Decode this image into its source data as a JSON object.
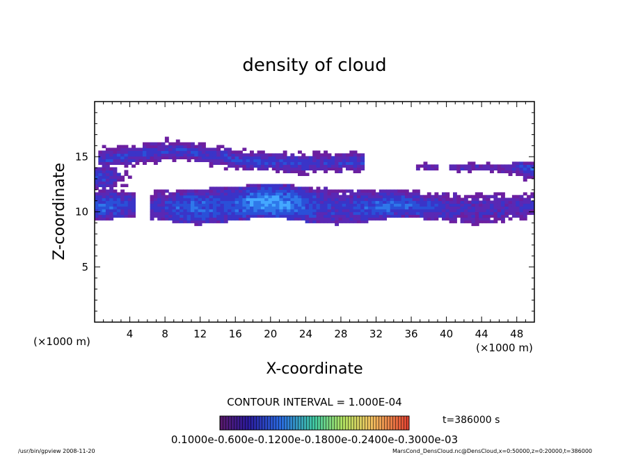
{
  "chart_data": {
    "type": "heatmap",
    "title": "density of cloud",
    "xlabel": "X-coordinate",
    "ylabel": "Z-coordinate",
    "x_units_label": "(×1000 m)",
    "y_units_label": "(×1000 m)",
    "xlim": [
      0,
      50
    ],
    "ylim": [
      0,
      20
    ],
    "x_ticks": [
      4,
      8,
      12,
      16,
      20,
      24,
      28,
      32,
      36,
      40,
      44,
      48
    ],
    "x_tick_labels": [
      "4",
      "8",
      "12",
      "16",
      "20",
      "24",
      "28",
      "32",
      "36",
      "40",
      "44",
      "48"
    ],
    "y_ticks": [
      5,
      10,
      15
    ],
    "y_tick_labels": [
      "5",
      "10",
      "15"
    ],
    "contour_interval": "CONTOUR INTERVAL = 1.000E-04",
    "time_label": "t=386000 s",
    "colorbar_labels": "0.1000e-0.600e-0.1200e-0.1800e-0.2400e-0.3000e-03",
    "colorbar_range": [
      0.0001,
      0.0007
    ],
    "footer_left": "/usr/bin/gpview   2008-11-20",
    "footer_right": "MarsCond_DensCloud.nc@DensCloud,x=0:50000,z=0:20000,t=386000",
    "colors": {
      "low": "#6a1f9e",
      "mid": "#2a4ad0",
      "high": "#3aa0ff"
    },
    "cloud_layers": [
      {
        "name": "upper",
        "x": [
          0.5,
          30.5
        ],
        "z": [
          13.6,
          15.9
        ]
      },
      {
        "name": "upper-right",
        "x": [
          36.5,
          50
        ],
        "z": [
          13.4,
          14.6
        ]
      },
      {
        "name": "middle",
        "x": [
          0,
          50
        ],
        "z": [
          9.0,
          12.2
        ]
      }
    ]
  }
}
